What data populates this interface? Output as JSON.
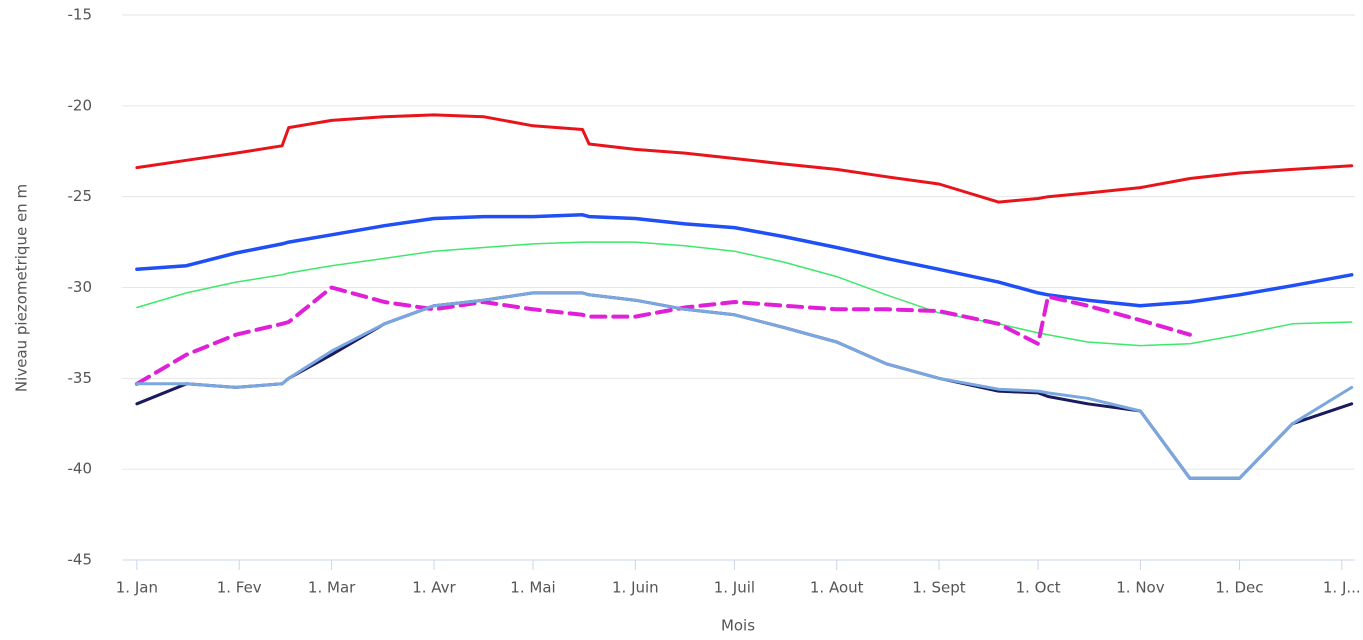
{
  "chart_data": {
    "type": "line",
    "x_title": "Mois",
    "y_title": "Niveau piezometrique en m",
    "xlim": [
      -4.5,
      369
    ],
    "ylim": [
      -45,
      -15
    ],
    "xticks": [
      {
        "value": 0,
        "label": "1. Jan"
      },
      {
        "value": 31,
        "label": "1. Fev"
      },
      {
        "value": 59,
        "label": "1. Mar"
      },
      {
        "value": 90,
        "label": "1. Avr"
      },
      {
        "value": 120,
        "label": "1. Mai"
      },
      {
        "value": 151,
        "label": "1. Juin"
      },
      {
        "value": 181,
        "label": "1. Juil"
      },
      {
        "value": 212,
        "label": "1. Aout"
      },
      {
        "value": 243,
        "label": "1. Sept"
      },
      {
        "value": 273,
        "label": "1. Oct"
      },
      {
        "value": 304,
        "label": "1. Nov"
      },
      {
        "value": 334,
        "label": "1. Dec"
      },
      {
        "value": 365,
        "label": "1. J..."
      }
    ],
    "yticks": [
      -45,
      -40,
      -35,
      -30,
      -25,
      -20,
      -15
    ],
    "grid": true,
    "x": [
      0,
      15,
      30,
      44,
      46,
      59,
      75,
      90,
      105,
      120,
      135,
      137,
      151,
      166,
      181,
      196,
      212,
      227,
      243,
      261,
      273,
      276,
      288,
      304,
      319,
      334,
      350,
      368
    ],
    "series": [
      {
        "color": "#e8141a",
        "dashed": false,
        "values": [
          -23.4,
          -23.0,
          -22.6,
          -22.2,
          -21.2,
          -20.8,
          -20.6,
          -20.5,
          -20.6,
          -21.1,
          -21.3,
          -22.1,
          -22.4,
          -22.6,
          -22.9,
          -23.2,
          -23.5,
          -23.9,
          -24.3,
          -25.3,
          -25.1,
          -25.0,
          -24.8,
          -24.5,
          -24.0,
          -23.7,
          -23.5,
          -23.3
        ]
      },
      {
        "color": "#1f4ff5",
        "dashed": false,
        "values": [
          -29.0,
          -28.8,
          -28.1,
          -27.6,
          -27.5,
          -27.1,
          -26.6,
          -26.2,
          -26.1,
          -26.1,
          -26.0,
          -26.1,
          -26.2,
          -26.5,
          -26.7,
          -27.2,
          -27.8,
          -28.4,
          -29.0,
          -29.7,
          -30.3,
          -30.4,
          -30.7,
          -31.0,
          -30.8,
          -30.4,
          -29.9,
          -29.3
        ]
      },
      {
        "color": "#3ee86b",
        "dashed": false,
        "values": [
          -31.1,
          -30.3,
          -29.7,
          -29.3,
          -29.2,
          -28.8,
          -28.4,
          -28.0,
          -27.8,
          -27.6,
          -27.5,
          -27.5,
          -27.5,
          -27.7,
          -28.0,
          -28.6,
          -29.4,
          -30.4,
          -31.4,
          -32.0,
          -32.5,
          -32.6,
          -33.0,
          -33.2,
          -33.1,
          -32.6,
          -32.0,
          -31.9
        ]
      },
      {
        "color": "#e020d8",
        "dashed": true,
        "values": [
          -35.3,
          -33.7,
          -32.6,
          -32.0,
          -31.9,
          -30.0,
          -30.8,
          -31.2,
          -30.8,
          -31.2,
          -31.5,
          -31.6,
          -31.6,
          -31.1,
          -30.8,
          -31.0,
          -31.2,
          -31.2,
          -31.3,
          -32.0,
          -33.1,
          -30.5,
          -31.0,
          -31.8,
          -32.6,
          null,
          null,
          null
        ]
      },
      {
        "color": "#1a1a5e",
        "dashed": false,
        "values": [
          -36.4,
          -35.3,
          -35.5,
          -35.3,
          -35.0,
          -33.7,
          -32.0,
          -31.0,
          -30.7,
          -30.3,
          -30.3,
          -30.4,
          -30.7,
          -31.2,
          -31.5,
          -32.2,
          -33.0,
          -34.2,
          -35.0,
          -35.7,
          -35.8,
          -36.0,
          -36.4,
          -36.8,
          -40.5,
          -40.5,
          -37.5,
          -36.4
        ]
      },
      {
        "color": "#7ba7e0",
        "dashed": false,
        "values": [
          -35.3,
          -35.3,
          -35.5,
          -35.3,
          -35.0,
          -33.5,
          -32.0,
          -31.0,
          -30.7,
          -30.3,
          -30.3,
          -30.4,
          -30.7,
          -31.2,
          -31.5,
          -32.2,
          -33.0,
          -34.2,
          -35.0,
          -35.6,
          -35.7,
          -35.8,
          -36.1,
          -36.8,
          -40.5,
          -40.5,
          -37.5,
          -35.5
        ]
      }
    ]
  }
}
